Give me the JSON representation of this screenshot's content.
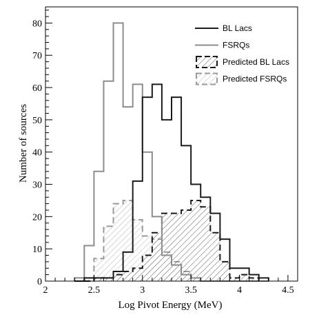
{
  "chart_data": {
    "type": "bar",
    "title": "",
    "xlabel": "Log Pivot Energy (MeV)",
    "ylabel": "Number of sources",
    "xlim": [
      2,
      4.6
    ],
    "ylim": [
      0,
      85
    ],
    "x_ticks": [
      2,
      2.5,
      3,
      3.5,
      4,
      4.5
    ],
    "x_tick_labels": [
      "2",
      "2.5",
      "3",
      "3.5",
      "4",
      "4.5"
    ],
    "y_ticks": [
      0,
      10,
      20,
      30,
      40,
      50,
      60,
      70,
      80
    ],
    "y_tick_labels": [
      "0",
      "10",
      "20",
      "30",
      "40",
      "50",
      "60",
      "70",
      "80"
    ],
    "bin_edges": [
      2.3,
      2.4,
      2.5,
      2.6,
      2.7,
      2.8,
      2.9,
      3.0,
      3.1,
      3.2,
      3.3,
      3.4,
      3.5,
      3.6,
      3.7,
      3.8,
      3.9,
      4.0,
      4.1,
      4.2,
      4.3
    ],
    "grid": false,
    "legend_position": "top-right",
    "series": [
      {
        "name": "BL Lacs",
        "style": "solid",
        "color": "#1a1a1a",
        "width": 2,
        "fill": "none",
        "values": [
          0,
          1,
          1,
          1,
          3,
          9,
          31,
          57,
          61,
          50,
          57,
          42,
          30,
          26,
          21,
          13,
          4,
          4,
          2,
          1
        ]
      },
      {
        "name": "FSRQs",
        "style": "solid",
        "color": "#8c8c8c",
        "width": 2,
        "fill": "none",
        "values": [
          1,
          11,
          34,
          62,
          80,
          54,
          61,
          40,
          20,
          8,
          5,
          2,
          1,
          0,
          0,
          0,
          0,
          0,
          0,
          0
        ]
      },
      {
        "name": "Predicted BL Lacs",
        "style": "dashed",
        "color": "#1a1a1a",
        "width": 2,
        "fill": "hatch-dark",
        "values": [
          0,
          0,
          1,
          1,
          2,
          3,
          4,
          8,
          15,
          21,
          21,
          22,
          25,
          23,
          15,
          6,
          1,
          2,
          1,
          0
        ]
      },
      {
        "name": "Predicted FSRQs",
        "style": "dashed",
        "color": "#9a9a9a",
        "width": 2,
        "fill": "hatch-light",
        "values": [
          0,
          1,
          7,
          17,
          24,
          25,
          19,
          14,
          13,
          9,
          6,
          3,
          1,
          0,
          0,
          0,
          0,
          0,
          0,
          0
        ]
      }
    ]
  }
}
